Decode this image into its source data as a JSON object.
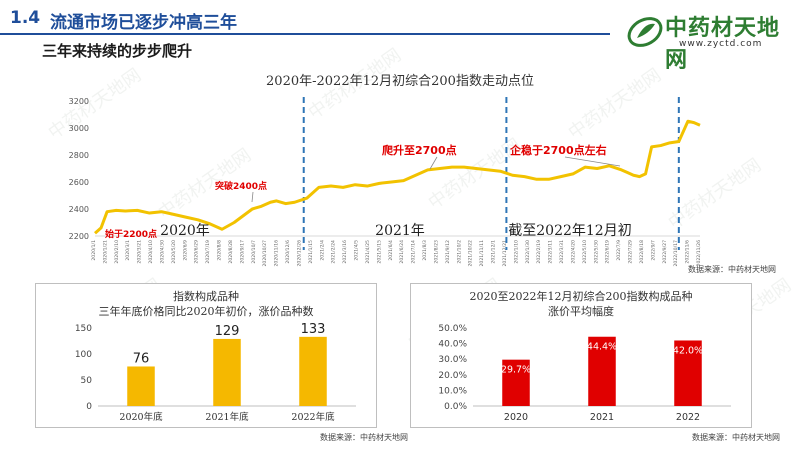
{
  "header": {
    "section_number": "1.4",
    "section_title": "流通市场已逐步冲高三年",
    "subtitle": "三年来持续的步步爬升"
  },
  "logo": {
    "name": "中药材天地网",
    "url": "www.zyctd.com"
  },
  "watermark": "中药材天地网",
  "colors": {
    "accent": "#1F4E9A",
    "line": "#F2C200",
    "bar_gold": "#F5B800",
    "bar_red": "#E00000",
    "annotation": "#E00000",
    "divider": "#2E75B6"
  },
  "chart_data": [
    {
      "type": "line",
      "title": "2020年-2022年12月初综合200指数走动点位",
      "source": "数据来源：中药材天地网",
      "ylim": [
        2200,
        3200
      ],
      "yticks": [
        2200,
        2400,
        2600,
        2800,
        3000,
        3200
      ],
      "xlabels": [
        "2020/1/1",
        "2020/1/21",
        "2020/2/10",
        "2020/3/1",
        "2020/3/21",
        "2020/4/10",
        "2020/4/30",
        "2020/5/20",
        "2020/6/9",
        "2020/6/29",
        "2020/7/19",
        "2020/8/8",
        "2020/8/28",
        "2020/9/17",
        "2020/10/7",
        "2020/10/27",
        "2020/11/16",
        "2020/12/6",
        "2020/12/26",
        "2021/1/15",
        "2021/2/4",
        "2021/2/24",
        "2021/3/16",
        "2021/4/5",
        "2021/4/25",
        "2021/5/15",
        "2021/6/4",
        "2021/6/24",
        "2021/7/14",
        "2021/8/3",
        "2021/8/23",
        "2021/9/12",
        "2021/10/2",
        "2021/10/22",
        "2021/11/11",
        "2021/12/1",
        "2021/12/21",
        "2022/1/10",
        "2022/1/30",
        "2022/2/19",
        "2022/3/11",
        "2022/3/31",
        "2022/4/20",
        "2022/5/10",
        "2022/5/30",
        "2022/6/19",
        "2022/7/9",
        "2022/7/29",
        "2022/8/18",
        "2022/9/7",
        "2022/9/27",
        "2022/10/17",
        "2022/11/6",
        "2022/11/26"
      ],
      "x": [
        0,
        0.01,
        0.02,
        0.035,
        0.05,
        0.07,
        0.09,
        0.11,
        0.13,
        0.15,
        0.17,
        0.19,
        0.21,
        0.23,
        0.245,
        0.26,
        0.275,
        0.29,
        0.3,
        0.315,
        0.33,
        0.35,
        0.37,
        0.39,
        0.41,
        0.43,
        0.45,
        0.47,
        0.49,
        0.51,
        0.53,
        0.55,
        0.57,
        0.59,
        0.61,
        0.63,
        0.65,
        0.67,
        0.69,
        0.71,
        0.73,
        0.75,
        0.77,
        0.79,
        0.81,
        0.83,
        0.85,
        0.87,
        0.88,
        0.89,
        0.9,
        0.91,
        0.92,
        0.935,
        0.95,
        0.965,
        0.98,
        0.99,
        1.0
      ],
      "values": [
        2220,
        2260,
        2380,
        2390,
        2385,
        2390,
        2370,
        2380,
        2360,
        2340,
        2320,
        2290,
        2250,
        2300,
        2350,
        2400,
        2420,
        2450,
        2460,
        2440,
        2450,
        2480,
        2560,
        2570,
        2560,
        2580,
        2570,
        2590,
        2600,
        2610,
        2650,
        2690,
        2700,
        2710,
        2710,
        2700,
        2690,
        2680,
        2650,
        2640,
        2620,
        2620,
        2640,
        2660,
        2710,
        2700,
        2720,
        2690,
        2670,
        2650,
        2640,
        2660,
        2860,
        2870,
        2890,
        2900,
        3050,
        3040,
        3020
      ],
      "segments": [
        "2020年",
        "2021年",
        "截至2022年12月初"
      ],
      "annotations": [
        "始于2200点",
        "突破2400点",
        "爬升至2700点",
        "企稳于2700点左右"
      ]
    },
    {
      "type": "bar",
      "title": "指数构成品种",
      "subtitle": "三年年底价格同比2020年初价，涨价品种数",
      "categories": [
        "2020年底",
        "2021年底",
        "2022年底"
      ],
      "values": [
        76,
        129,
        133
      ],
      "labels": [
        "76",
        "129",
        "133"
      ],
      "ylim": [
        0,
        150
      ],
      "yticks": [
        "0",
        "50",
        "100",
        "150"
      ],
      "source": "数据来源：中药材天地网"
    },
    {
      "type": "bar",
      "title": "2020至2022年12月初综合200指数构成品种",
      "subtitle": "涨价平均幅度",
      "categories": [
        "2020",
        "2021",
        "2022"
      ],
      "values": [
        29.7,
        44.4,
        42.0
      ],
      "labels": [
        "29.7%",
        "44.4%",
        "42.0%"
      ],
      "ylim": [
        0,
        50
      ],
      "yticks": [
        "0.0%",
        "10.0%",
        "20.0%",
        "30.0%",
        "40.0%",
        "50.0%"
      ],
      "source": "数据来源：中药材天地网"
    }
  ]
}
